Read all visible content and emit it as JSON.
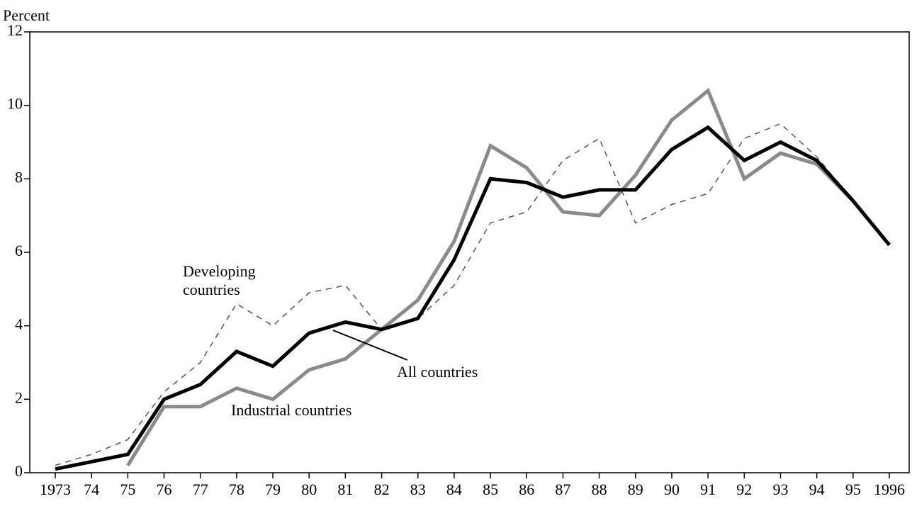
{
  "chart_data": {
    "type": "line",
    "y_label": "Percent",
    "categories": [
      "1973",
      "74",
      "75",
      "76",
      "77",
      "78",
      "79",
      "80",
      "81",
      "82",
      "83",
      "84",
      "85",
      "86",
      "87",
      "88",
      "89",
      "90",
      "91",
      "92",
      "93",
      "94",
      "95",
      "1996"
    ],
    "series": [
      {
        "name": "Developing countries",
        "color": "#555555",
        "style": "dashed",
        "values": [
          0.2,
          0.5,
          0.9,
          2.2,
          3.0,
          4.6,
          4.0,
          4.9,
          5.1,
          3.9,
          4.2,
          5.1,
          6.8,
          7.1,
          8.5,
          9.1,
          6.8,
          7.3,
          7.6,
          9.1,
          9.5,
          8.6,
          7.4,
          6.2
        ]
      },
      {
        "name": "Industrial countries",
        "color": "#8a8a8a",
        "style": "solid",
        "values": [
          null,
          null,
          0.2,
          1.8,
          1.8,
          2.3,
          2.0,
          2.8,
          3.1,
          3.9,
          4.7,
          6.3,
          8.9,
          8.3,
          7.1,
          7.0,
          8.1,
          9.6,
          10.4,
          8.0,
          8.7,
          8.4,
          7.4,
          6.2
        ]
      },
      {
        "name": "All countries",
        "color": "#000000",
        "style": "solid",
        "values": [
          0.1,
          0.3,
          0.5,
          2.0,
          2.4,
          3.3,
          2.9,
          3.8,
          4.1,
          3.9,
          4.2,
          5.8,
          8.0,
          7.9,
          7.5,
          7.7,
          7.7,
          8.8,
          9.4,
          8.5,
          9.0,
          8.5,
          7.4,
          6.2
        ]
      }
    ],
    "ylim": [
      0,
      12
    ],
    "yticks": [
      0,
      2,
      4,
      6,
      8,
      10,
      12
    ],
    "grid": false
  }
}
